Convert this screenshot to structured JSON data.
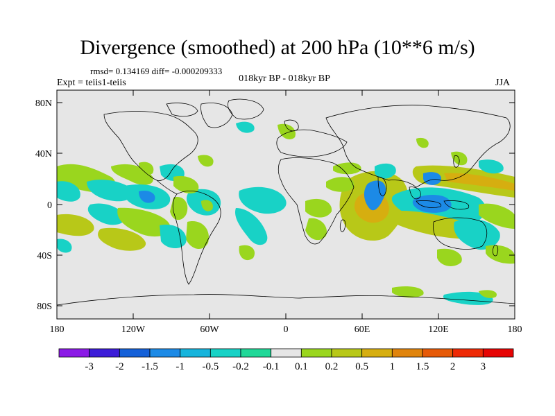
{
  "title": "Divergence (smoothed) at 200 hPa (10**6 m/s)",
  "stats": "rmsd= 0.134169 diff= -0.000209333",
  "experiment": "Expt = teiis1-teiis",
  "period": "018kyr BP - 018kyr BP",
  "season": "JJA",
  "lat_ticks": [
    "80N",
    "40N",
    "0",
    "40S",
    "80S"
  ],
  "lon_ticks": [
    "180",
    "120W",
    "60W",
    "0",
    "60E",
    "120E",
    "180"
  ],
  "colorbar": {
    "labels": [
      "-3",
      "-2",
      "-1.5",
      "-1",
      "-0.5",
      "-0.2",
      "-0.1",
      "0.1",
      "0.2",
      "0.5",
      "1",
      "1.5",
      "2",
      "3"
    ],
    "colors": [
      "#8b1ae6",
      "#3c1cd8",
      "#1460d8",
      "#1c8ae6",
      "#16b4dc",
      "#18d2c6",
      "#20d898",
      "#e6e6e6",
      "#9ad61e",
      "#b8c818",
      "#d6ae10",
      "#e0840c",
      "#e65a08",
      "#ee2a06",
      "#e60404"
    ]
  },
  "field_colors": {
    "land_background": "#e6e6e6",
    "positive_weak": "#9ad61e",
    "positive_mid": "#b8c818",
    "positive_strong": "#d6ae10",
    "negative_weak": "#20d898",
    "negative_mid": "#18d2c6",
    "negative_strong": "#1c8ae6"
  }
}
